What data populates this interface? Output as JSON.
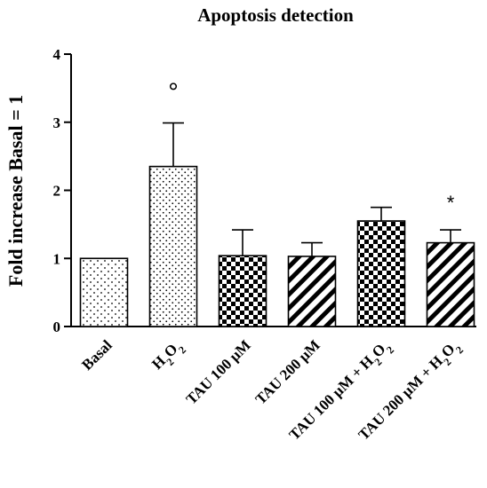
{
  "chart_data": {
    "type": "bar",
    "title": "Apoptosis detection",
    "xlabel": "",
    "ylabel": "Fold increase Basal = 1",
    "ylim": [
      0,
      4
    ],
    "yticks": [
      "0",
      "1",
      "2",
      "3",
      "4"
    ],
    "grid": false,
    "categories": [
      "Basal",
      "H2O2",
      "TAU 100 µM",
      "TAU 200 µM",
      "TAU 100 µM + H2O2",
      "TAU 200 µM + H2O2"
    ],
    "category_labels": [
      {
        "parts": [
          {
            "t": "Basal"
          }
        ]
      },
      {
        "parts": [
          {
            "t": "H"
          },
          {
            "t": "2",
            "sub": true
          },
          {
            "t": "O"
          },
          {
            "t": "2",
            "sub": true
          }
        ]
      },
      {
        "parts": [
          {
            "t": "TAU 100 µM"
          }
        ]
      },
      {
        "parts": [
          {
            "t": "TAU 200 µM"
          }
        ]
      },
      {
        "parts": [
          {
            "t": "TAU 100 µM + H"
          },
          {
            "t": "2",
            "sub": true
          },
          {
            "t": "O"
          },
          {
            "t": "2",
            "sub": true
          }
        ]
      },
      {
        "parts": [
          {
            "t": "TAU 200 µM + H"
          },
          {
            "t": "2",
            "sub": true
          },
          {
            "t": "O"
          },
          {
            "t": "2",
            "sub": true
          }
        ]
      }
    ],
    "values": [
      1.0,
      2.35,
      1.04,
      1.03,
      1.55,
      1.23
    ],
    "error_upper": [
      0,
      0.64,
      0.38,
      0.2,
      0.2,
      0.19
    ],
    "patterns": [
      "dots-sparse",
      "dots-dense",
      "checker",
      "diagonal",
      "checker",
      "diagonal"
    ],
    "annotations": [
      {
        "category_index": 1,
        "text": "°",
        "y": 3.5
      },
      {
        "category_index": 5,
        "text": "*",
        "y": 1.85
      }
    ]
  }
}
